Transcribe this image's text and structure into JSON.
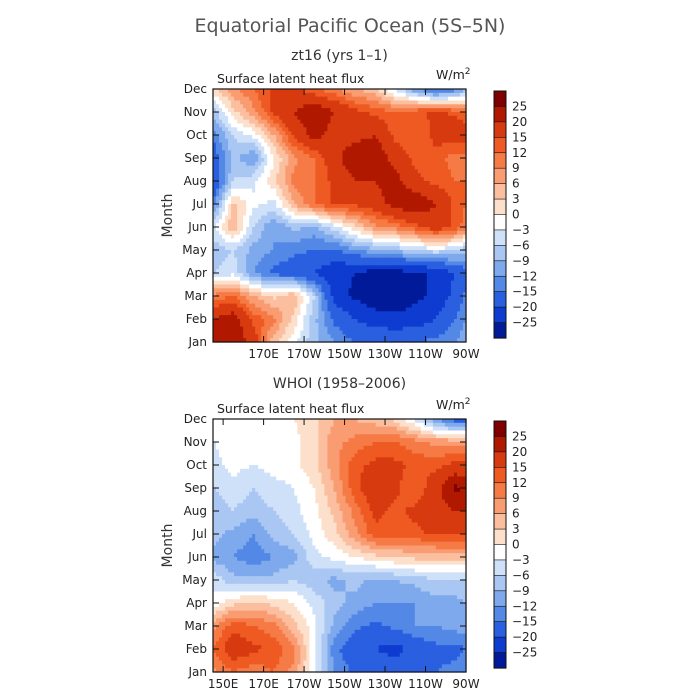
{
  "figure": {
    "title": "Equatorial Pacific Ocean (5S–5N)"
  },
  "colorbar": {
    "levels": [
      "25",
      "20",
      "15",
      "12",
      "9",
      "6",
      "3",
      "0",
      "−3",
      "−6",
      "−9",
      "−12",
      "−15",
      "−20",
      "−25"
    ],
    "colors": [
      "#7f0000",
      "#b01800",
      "#d83a10",
      "#ee5a22",
      "#f57a45",
      "#f99c72",
      "#fbbe9e",
      "#fde0cb",
      "#ffffff",
      "#cfe1f8",
      "#a9c7f2",
      "#7ea9ec",
      "#5488e6",
      "#2a5fe0",
      "#0e3bd0",
      "#001a99"
    ]
  },
  "chart_data": [
    {
      "type": "heatmap",
      "title": "zt16 (yrs 1–1)",
      "plot_label": "Surface latent heat flux",
      "units_base": "W/m",
      "units_exp": "2",
      "xlabel": "",
      "ylabel": "Month",
      "x_range": [
        145,
        270
      ],
      "x_ticks": [
        {
          "value": 170,
          "label": "170E"
        },
        {
          "value": 190,
          "label": "170W"
        },
        {
          "value": 210,
          "label": "150W"
        },
        {
          "value": 230,
          "label": "130W"
        },
        {
          "value": 250,
          "label": "110W"
        },
        {
          "value": 270,
          "label": "90W"
        }
      ],
      "months": [
        "Jan",
        "Feb",
        "Mar",
        "Apr",
        "May",
        "Jun",
        "Jul",
        "Aug",
        "Sep",
        "Oct",
        "Nov",
        "Dec"
      ],
      "x_nodes": [
        145,
        155,
        165,
        175,
        185,
        195,
        205,
        215,
        225,
        235,
        245,
        255,
        265,
        270
      ],
      "values": [
        [
          24,
          24,
          18,
          4,
          -2,
          -8,
          -12,
          -15,
          -15,
          -15,
          -15,
          -14,
          -12,
          -10
        ],
        [
          20,
          23,
          14,
          10,
          2,
          -8,
          -16,
          -20,
          -23,
          -24,
          -23,
          -20,
          -15,
          -12
        ],
        [
          10,
          12,
          6,
          2,
          6,
          -6,
          -22,
          -26,
          -28,
          -28,
          -26,
          -24,
          -18,
          -14
        ],
        [
          -6,
          -4,
          -12,
          -16,
          -18,
          -20,
          -24,
          -25,
          -27,
          -27,
          -26,
          -24,
          -20,
          -16
        ],
        [
          -8,
          -6,
          -10,
          -12,
          -14,
          -15,
          -16,
          -12,
          -10,
          -8,
          -6,
          -4,
          -6,
          -8
        ],
        [
          -4,
          6,
          -6,
          -12,
          -8,
          -10,
          -4,
          2,
          8,
          10,
          14,
          18,
          14,
          10
        ],
        [
          -14,
          4,
          -2,
          -4,
          6,
          12,
          16,
          16,
          18,
          22,
          24,
          20,
          14,
          12
        ],
        [
          -20,
          -6,
          -4,
          2,
          10,
          12,
          16,
          20,
          20,
          22,
          16,
          14,
          12,
          12
        ],
        [
          -18,
          -8,
          -12,
          0,
          8,
          12,
          18,
          24,
          24,
          18,
          14,
          14,
          10,
          10
        ],
        [
          -14,
          -6,
          -2,
          6,
          16,
          22,
          18,
          18,
          20,
          14,
          12,
          16,
          18,
          18
        ],
        [
          -8,
          2,
          8,
          16,
          20,
          24,
          20,
          16,
          14,
          12,
          14,
          16,
          14,
          12
        ],
        [
          2,
          8,
          12,
          16,
          16,
          12,
          10,
          6,
          4,
          -4,
          -12,
          -18,
          -14,
          -10
        ]
      ]
    },
    {
      "type": "heatmap",
      "title": "WHOI (1958–2006)",
      "plot_label": "Surface latent heat flux",
      "units_base": "W/m",
      "units_exp": "2",
      "xlabel": "",
      "ylabel": "Month",
      "x_range": [
        145,
        270
      ],
      "x_ticks": [
        {
          "value": 150,
          "label": "150E"
        },
        {
          "value": 170,
          "label": "170E"
        },
        {
          "value": 190,
          "label": "170W"
        },
        {
          "value": 210,
          "label": "150W"
        },
        {
          "value": 230,
          "label": "130W"
        },
        {
          "value": 250,
          "label": "110W"
        },
        {
          "value": 270,
          "label": "90W"
        }
      ],
      "months": [
        "Jan",
        "Feb",
        "Mar",
        "Apr",
        "May",
        "Jun",
        "Jul",
        "Aug",
        "Sep",
        "Oct",
        "Nov",
        "Dec"
      ],
      "x_nodes": [
        145,
        155,
        165,
        175,
        185,
        195,
        205,
        215,
        225,
        235,
        245,
        255,
        265,
        270
      ],
      "values": [
        [
          8,
          12,
          10,
          12,
          8,
          -2,
          -12,
          -16,
          -16,
          -16,
          -15,
          -15,
          -14,
          -13
        ],
        [
          12,
          18,
          16,
          14,
          10,
          -2,
          -14,
          -18,
          -20,
          -22,
          -18,
          -16,
          -16,
          -15
        ],
        [
          8,
          14,
          12,
          10,
          4,
          -2,
          -10,
          -14,
          -16,
          -14,
          -12,
          -12,
          -11,
          -10
        ],
        [
          -2,
          2,
          4,
          2,
          0,
          -4,
          -8,
          -10,
          -12,
          -12,
          -12,
          -10,
          -10,
          -9
        ],
        [
          -4,
          -8,
          -8,
          -8,
          -6,
          -8,
          -10,
          -8,
          -10,
          -9,
          -8,
          -6,
          -6,
          -6
        ],
        [
          -10,
          -12,
          -14,
          -12,
          -10,
          -4,
          -2,
          0,
          2,
          3,
          4,
          4,
          4,
          4
        ],
        [
          -8,
          -10,
          -12,
          -8,
          -6,
          -2,
          2,
          8,
          14,
          14,
          14,
          16,
          16,
          16
        ],
        [
          -8,
          -6,
          -8,
          -6,
          -4,
          -1,
          4,
          10,
          16,
          14,
          16,
          18,
          20,
          20
        ],
        [
          -6,
          -4,
          -6,
          -4,
          -3,
          0,
          6,
          14,
          18,
          16,
          12,
          18,
          26,
          24
        ],
        [
          -4,
          -2,
          -3,
          -2,
          -1,
          2,
          8,
          14,
          16,
          16,
          14,
          14,
          16,
          16
        ],
        [
          -3,
          -2,
          -2,
          -2,
          -1,
          2,
          8,
          10,
          12,
          12,
          10,
          8,
          8,
          8
        ],
        [
          -1,
          -1,
          -1,
          -1,
          0,
          2,
          6,
          6,
          4,
          2,
          -4,
          -12,
          -18,
          -18
        ]
      ]
    }
  ]
}
